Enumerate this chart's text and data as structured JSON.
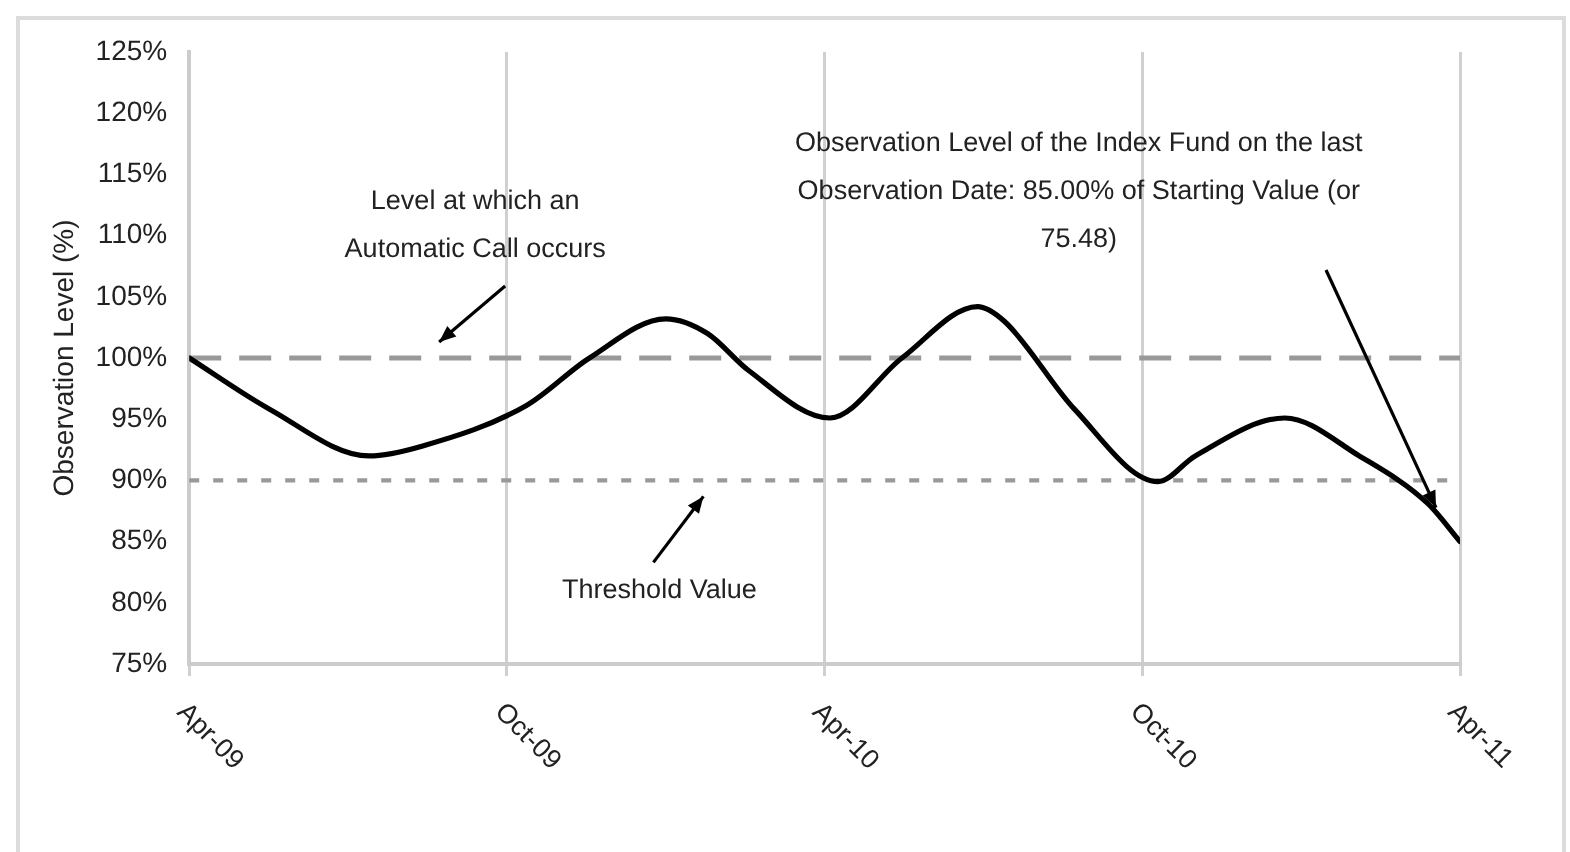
{
  "chart_data": {
    "type": "line",
    "ylabel": "Observation Level (%)",
    "x": [
      "2009-04",
      "2009-05-17",
      "2009-07-13",
      "2009-08-13",
      "2009-10-12",
      "2009-11-18",
      "2010-01-01",
      "2010-01-25",
      "2010-02-18",
      "2010-04-04",
      "2010-05-15",
      "2010-06-28",
      "2010-07-13",
      "2010-08-23",
      "2010-10-10",
      "2010-11-01",
      "2010-12-22",
      "2011-02-04",
      "2011-03-13",
      "2011-04"
    ],
    "series": [
      {
        "color": "#000000",
        "values": [
          100,
          95.8,
          92,
          92.8,
          96.1,
          100,
          103.2,
          102,
          99,
          95.1,
          100,
          104.2,
          103,
          95.8,
          89.9,
          92,
          95.1,
          92,
          88.1,
          85
        ]
      }
    ],
    "xlim": [
      "2009-04",
      "2011-04"
    ],
    "xticks": [
      {
        "value": "2009-04",
        "label": "Apr-09"
      },
      {
        "value": "2009-10",
        "label": "Oct-09"
      },
      {
        "value": "2010-04",
        "label": "Apr-10"
      },
      {
        "value": "2010-10",
        "label": "Oct-10"
      },
      {
        "value": "2011-04",
        "label": "Apr-11"
      }
    ],
    "ylim": [
      75,
      125
    ],
    "yticks": [
      {
        "value": 75,
        "label": "75%"
      },
      {
        "value": 80,
        "label": "80%"
      },
      {
        "value": 85,
        "label": "85%"
      },
      {
        "value": 90,
        "label": "90%"
      },
      {
        "value": 95,
        "label": "95%"
      },
      {
        "value": 100,
        "label": "100%"
      },
      {
        "value": 105,
        "label": "105%"
      },
      {
        "value": 110,
        "label": "110%"
      },
      {
        "value": 115,
        "label": "115%"
      },
      {
        "value": 120,
        "label": "120%"
      },
      {
        "value": 125,
        "label": "125%"
      }
    ],
    "grid": "x",
    "legend": false,
    "marker": "none",
    "line_style": "solid",
    "ref_lines": [
      {
        "axis": "y",
        "value": 100,
        "label": "Level at which an Automatic Call occurs",
        "color": "#999999",
        "line_style": "dashed"
      },
      {
        "axis": "y",
        "value": 90,
        "label": "Threshold Value",
        "color": "#999999",
        "line_style": "dotted"
      }
    ],
    "annotations": [
      "Observation Level of the Index Fund on the last Observation Date: 85.00% of Starting Value (or 75.48)"
    ]
  }
}
